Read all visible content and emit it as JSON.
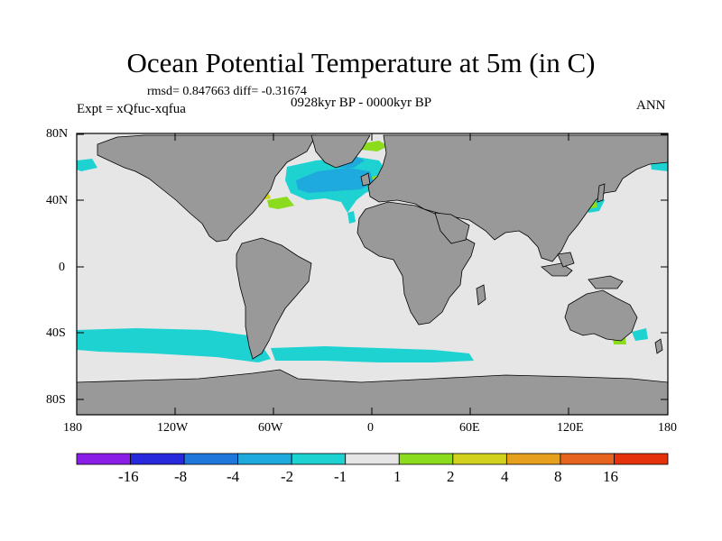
{
  "title": "Ocean Potential Temperature at 5m (in C)",
  "stats_line": "rmsd= 0.847663 diff= -0.31674",
  "experiment": "Expt = xQfuc-xqfua",
  "period": "0928kyr BP - 0000kyr BP",
  "season": "ANN",
  "lat_ticks": [
    "80N",
    "40N",
    "0",
    "40S",
    "80S"
  ],
  "lon_ticks": [
    "180",
    "120W",
    "60W",
    "0",
    "60E",
    "120E",
    "180"
  ],
  "colorbar": {
    "labels": [
      "-16",
      "-8",
      "-4",
      "-2",
      "-1",
      "1",
      "2",
      "4",
      "8",
      "16"
    ],
    "colors": [
      "#8a1ee6",
      "#2828dc",
      "#1e78dc",
      "#1eaadc",
      "#1ed2d2",
      "#e6e6e6",
      "#8cdc1e",
      "#d2d21e",
      "#e6a01e",
      "#e6641e",
      "#e6320a"
    ]
  },
  "colors": {
    "ocean_neutral": "#e6e6e6",
    "land": "#999999",
    "cool_1": "#1ed2d2",
    "cool_2": "#1eaadc",
    "warm_1": "#8cdc1e",
    "warm_2": "#d2d21e"
  }
}
